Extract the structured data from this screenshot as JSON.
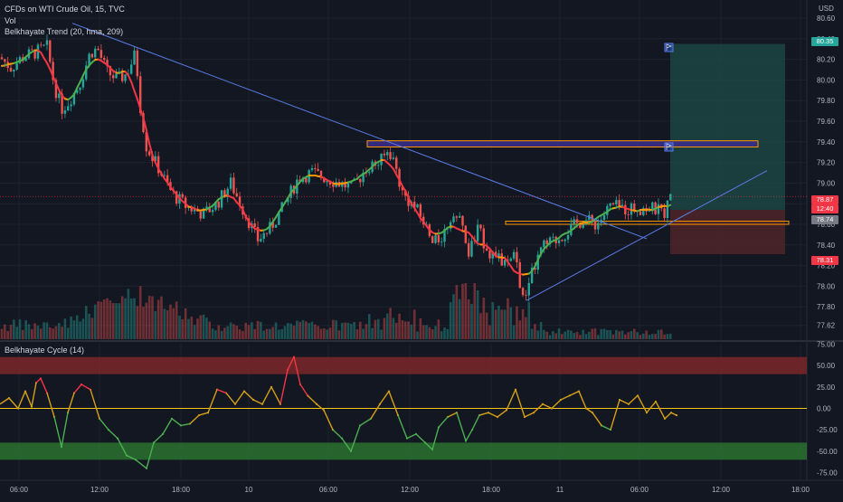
{
  "header": {
    "symbol_line": "CFDs on WTI Crude Oil, 15, TVC",
    "vol_label": "Vol",
    "trend_label": "Belkhayate Trend (20, hma, 209)",
    "cycle_label": "Belkhayate Cycle (14)",
    "currency": "USD"
  },
  "price_tags": {
    "last": "78.87",
    "countdown": "12:40",
    "level_upper": "78.74",
    "stop": "78.31",
    "target": "80.35"
  },
  "colors": {
    "background": "#131722",
    "up": "#26a69a",
    "down": "#ef5350",
    "trend_green": "#4caf50",
    "trend_orange": "#ff9800",
    "trend_red": "#f23645",
    "trendline": "#5b7be8",
    "zone_purple": "#3c2d8c",
    "zone_orange": "#ff9800",
    "target_zone": "#1e4b48",
    "stop_zone": "#4e2428",
    "cycle_zero": "#f5c518"
  },
  "chart_data": [
    {
      "type": "candlestick",
      "title": "CFDs on WTI Crude Oil, 15, TVC",
      "ylim": [
        77.6,
        80.6
      ],
      "y_ticks": [
        "80.60",
        "80.40",
        "80.20",
        "80.00",
        "79.80",
        "79.60",
        "79.40",
        "79.20",
        "79.00",
        "78.80",
        "78.60",
        "78.40",
        "78.20",
        "78.00",
        "77.80",
        "77.62"
      ],
      "x_tick_labels": [
        "06:00",
        "12:00",
        "18:00",
        "10",
        "06:00",
        "12:00",
        "18:00",
        "11",
        "06:00",
        "12:00",
        "18:00"
      ],
      "price_path": [
        [
          0,
          80.22
        ],
        [
          12,
          80.12
        ],
        [
          25,
          80.22
        ],
        [
          40,
          80.27
        ],
        [
          52,
          80.32
        ],
        [
          60,
          79.95
        ],
        [
          68,
          79.72
        ],
        [
          75,
          79.78
        ],
        [
          88,
          79.96
        ],
        [
          100,
          80.27
        ],
        [
          108,
          80.3
        ],
        [
          118,
          80.08
        ],
        [
          130,
          80.0
        ],
        [
          140,
          80.06
        ],
        [
          150,
          80.26
        ],
        [
          155,
          79.75
        ],
        [
          162,
          79.35
        ],
        [
          175,
          79.15
        ],
        [
          190,
          78.9
        ],
        [
          205,
          78.78
        ],
        [
          225,
          78.7
        ],
        [
          240,
          78.8
        ],
        [
          255,
          79.0
        ],
        [
          270,
          78.72
        ],
        [
          285,
          78.45
        ],
        [
          298,
          78.55
        ],
        [
          312,
          78.75
        ],
        [
          330,
          79.05
        ],
        [
          345,
          79.1
        ],
        [
          360,
          79.05
        ],
        [
          375,
          79.0
        ],
        [
          390,
          78.95
        ],
        [
          405,
          79.15
        ],
        [
          420,
          79.2
        ],
        [
          430,
          79.32
        ],
        [
          436,
          79.2
        ],
        [
          445,
          78.9
        ],
        [
          460,
          78.75
        ],
        [
          470,
          78.6
        ],
        [
          478,
          78.4
        ],
        [
          490,
          78.5
        ],
        [
          500,
          78.7
        ],
        [
          510,
          78.62
        ],
        [
          518,
          78.3
        ],
        [
          528,
          78.55
        ],
        [
          540,
          78.35
        ],
        [
          552,
          78.25
        ],
        [
          562,
          78.2
        ],
        [
          570,
          78.3
        ],
        [
          578,
          77.85
        ],
        [
          588,
          78.12
        ],
        [
          600,
          78.38
        ],
        [
          615,
          78.45
        ],
        [
          630,
          78.55
        ],
        [
          645,
          78.65
        ],
        [
          660,
          78.6
        ],
        [
          675,
          78.78
        ],
        [
          690,
          78.75
        ],
        [
          705,
          78.76
        ],
        [
          720,
          78.75
        ],
        [
          735,
          78.72
        ],
        [
          742,
          78.87
        ]
      ],
      "volume": {
        "peak_index": 150,
        "axis_max": "relative"
      },
      "trendline_down": {
        "from": [
          80,
          80.55
        ],
        "to": [
          715,
          78.46
        ]
      },
      "trendline_up": {
        "from": [
          582,
          77.86
        ],
        "to": [
          848,
          79.12
        ]
      },
      "zones": [
        {
          "name": "resistance",
          "y1": 79.41,
          "y2": 79.35,
          "x1": 406,
          "x2": 838
        },
        {
          "name": "support",
          "y1": 78.63,
          "y2": 78.6,
          "x1": 559,
          "x2": 872
        }
      ],
      "position": {
        "entry": 78.74,
        "target": 80.35,
        "stop": 78.31,
        "x1": 741,
        "x2": 868
      }
    },
    {
      "type": "line",
      "title": "Belkhayate Cycle (14)",
      "ylim": [
        -75,
        75
      ],
      "y_ticks": [
        "75.00",
        "50.00",
        "25.00",
        "0.00",
        "-25.00",
        "-50.00",
        "-75.00"
      ],
      "bands": [
        {
          "from": 40,
          "to": 60,
          "color": "red"
        },
        {
          "from": -40,
          "to": -60,
          "color": "green"
        }
      ],
      "values": [
        [
          0,
          5
        ],
        [
          10,
          12
        ],
        [
          20,
          0
        ],
        [
          28,
          20
        ],
        [
          35,
          2
        ],
        [
          40,
          30
        ],
        [
          45,
          35
        ],
        [
          52,
          18
        ],
        [
          60,
          -10
        ],
        [
          68,
          -45
        ],
        [
          75,
          -5
        ],
        [
          82,
          18
        ],
        [
          90,
          28
        ],
        [
          100,
          22
        ],
        [
          110,
          -12
        ],
        [
          120,
          -25
        ],
        [
          130,
          -35
        ],
        [
          140,
          -55
        ],
        [
          150,
          -60
        ],
        [
          162,
          -70
        ],
        [
          170,
          -40
        ],
        [
          180,
          -30
        ],
        [
          190,
          -12
        ],
        [
          200,
          -20
        ],
        [
          210,
          -18
        ],
        [
          220,
          -8
        ],
        [
          230,
          -5
        ],
        [
          240,
          22
        ],
        [
          250,
          18
        ],
        [
          260,
          5
        ],
        [
          270,
          20
        ],
        [
          280,
          10
        ],
        [
          290,
          5
        ],
        [
          300,
          25
        ],
        [
          310,
          5
        ],
        [
          318,
          45
        ],
        [
          325,
          60
        ],
        [
          332,
          28
        ],
        [
          340,
          15
        ],
        [
          350,
          5
        ],
        [
          358,
          -2
        ],
        [
          368,
          -25
        ],
        [
          378,
          -35
        ],
        [
          388,
          -50
        ],
        [
          398,
          -20
        ],
        [
          410,
          -12
        ],
        [
          420,
          5
        ],
        [
          430,
          20
        ],
        [
          440,
          -8
        ],
        [
          450,
          -35
        ],
        [
          460,
          -30
        ],
        [
          470,
          -40
        ],
        [
          478,
          -48
        ],
        [
          485,
          -22
        ],
        [
          495,
          -10
        ],
        [
          505,
          -5
        ],
        [
          515,
          -38
        ],
        [
          522,
          -25
        ],
        [
          530,
          -8
        ],
        [
          540,
          -5
        ],
        [
          550,
          -10
        ],
        [
          560,
          -2
        ],
        [
          570,
          22
        ],
        [
          580,
          -10
        ],
        [
          590,
          -5
        ],
        [
          600,
          5
        ],
        [
          610,
          0
        ],
        [
          620,
          10
        ],
        [
          630,
          15
        ],
        [
          640,
          20
        ],
        [
          648,
          0
        ],
        [
          655,
          -5
        ],
        [
          665,
          -20
        ],
        [
          675,
          -25
        ],
        [
          685,
          10
        ],
        [
          695,
          5
        ],
        [
          705,
          15
        ],
        [
          715,
          -5
        ],
        [
          725,
          8
        ],
        [
          735,
          -12
        ],
        [
          742,
          -5
        ],
        [
          748,
          -8
        ]
      ]
    }
  ]
}
